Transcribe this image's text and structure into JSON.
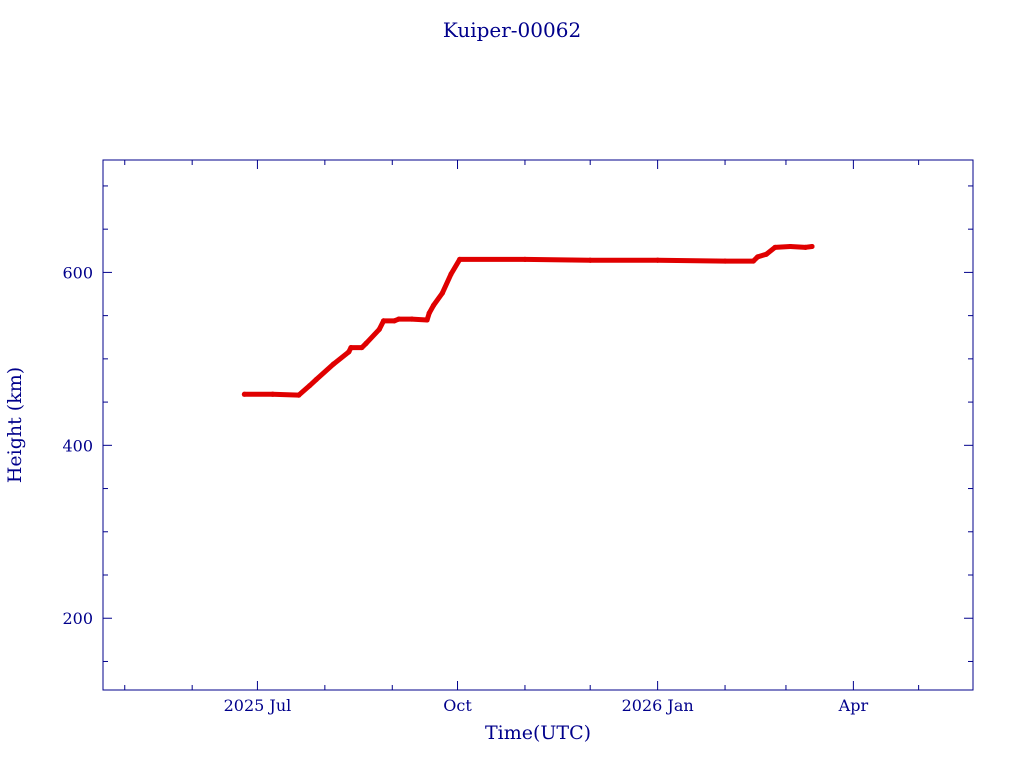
{
  "chart_data": {
    "type": "line",
    "title": "Kuiper-00062",
    "xlabel": "Time(UTC)",
    "ylabel": "Height (km)",
    "x_axis_type": "date",
    "xlim": [
      "2025-04-21",
      "2026-05-26"
    ],
    "ylim": [
      117,
      730
    ],
    "x_ticks": [
      {
        "date": "2025-07-01",
        "label": "2025 Jul"
      },
      {
        "date": "2025-10-01",
        "label": "Oct"
      },
      {
        "date": "2026-01-01",
        "label": "2026 Jan"
      },
      {
        "date": "2026-04-01",
        "label": "Apr"
      }
    ],
    "x_minor_ticks": [
      "2025-05-01",
      "2025-06-01",
      "2025-08-01",
      "2025-09-01",
      "2025-11-01",
      "2025-12-01",
      "2026-02-01",
      "2026-03-01",
      "2026-05-01"
    ],
    "y_ticks": [
      200,
      400,
      600
    ],
    "y_minor_ticks": [
      150,
      250,
      300,
      350,
      450,
      500,
      550,
      650,
      700
    ],
    "grid": false,
    "colors": {
      "axis": "#00008b",
      "text": "#00008b",
      "series": "#e00000"
    },
    "series": [
      {
        "points": [
          {
            "x": "2025-06-25",
            "y": 459
          },
          {
            "x": "2025-07-08",
            "y": 459
          },
          {
            "x": "2025-07-20",
            "y": 458
          },
          {
            "x": "2025-07-25",
            "y": 469
          },
          {
            "x": "2025-07-28",
            "y": 476
          },
          {
            "x": "2025-08-05",
            "y": 494
          },
          {
            "x": "2025-08-12",
            "y": 508
          },
          {
            "x": "2025-08-13",
            "y": 513
          },
          {
            "x": "2025-08-18",
            "y": 513
          },
          {
            "x": "2025-08-20",
            "y": 518
          },
          {
            "x": "2025-08-26",
            "y": 534
          },
          {
            "x": "2025-08-28",
            "y": 544
          },
          {
            "x": "2025-09-02",
            "y": 544
          },
          {
            "x": "2025-09-04",
            "y": 546
          },
          {
            "x": "2025-09-10",
            "y": 546
          },
          {
            "x": "2025-09-17",
            "y": 545
          },
          {
            "x": "2025-09-18",
            "y": 553
          },
          {
            "x": "2025-09-20",
            "y": 562
          },
          {
            "x": "2025-09-24",
            "y": 576
          },
          {
            "x": "2025-09-28",
            "y": 598
          },
          {
            "x": "2025-10-02",
            "y": 615
          },
          {
            "x": "2025-11-01",
            "y": 615
          },
          {
            "x": "2025-12-01",
            "y": 614
          },
          {
            "x": "2026-01-01",
            "y": 614
          },
          {
            "x": "2026-02-01",
            "y": 613
          },
          {
            "x": "2026-02-14",
            "y": 613
          },
          {
            "x": "2026-02-16",
            "y": 618
          },
          {
            "x": "2026-02-20",
            "y": 621
          },
          {
            "x": "2026-02-24",
            "y": 629
          },
          {
            "x": "2026-03-03",
            "y": 630
          },
          {
            "x": "2026-03-10",
            "y": 629
          },
          {
            "x": "2026-03-13",
            "y": 630
          }
        ]
      }
    ]
  }
}
